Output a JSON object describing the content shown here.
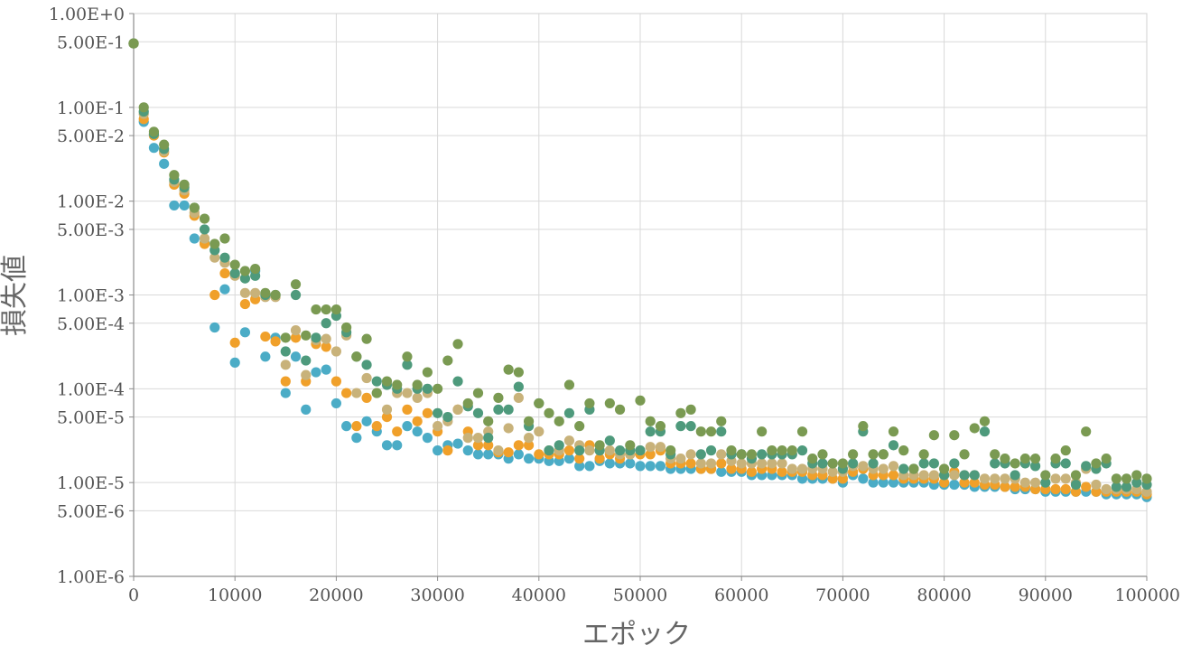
{
  "chart_data": {
    "type": "scatter",
    "xlabel": "エポック",
    "ylabel": "損失値",
    "xlim": [
      0,
      100000
    ],
    "ylim": [
      1e-06,
      1
    ],
    "yscale": "log",
    "grid": true,
    "x_ticks": [
      "0",
      "10000",
      "20000",
      "30000",
      "40000",
      "50000",
      "60000",
      "70000",
      "80000",
      "90000",
      "100000"
    ],
    "y_ticks": [
      "1.00E+0",
      "5.00E-1",
      "1.00E-1",
      "5.00E-2",
      "1.00E-2",
      "5.00E-3",
      "1.00E-3",
      "5.00E-4",
      "1.00E-4",
      "5.00E-5",
      "1.00E-5",
      "5.00E-6",
      "1.00E-6"
    ],
    "x": [
      0,
      1000,
      2000,
      3000,
      4000,
      5000,
      6000,
      7000,
      8000,
      9000,
      10000,
      11000,
      12000,
      13000,
      14000,
      15000,
      16000,
      17000,
      18000,
      19000,
      20000,
      21000,
      22000,
      23000,
      24000,
      25000,
      26000,
      27000,
      28000,
      29000,
      30000,
      31000,
      32000,
      33000,
      34000,
      35000,
      36000,
      37000,
      38000,
      39000,
      40000,
      41000,
      42000,
      43000,
      44000,
      45000,
      46000,
      47000,
      48000,
      49000,
      50000,
      51000,
      52000,
      53000,
      54000,
      55000,
      56000,
      57000,
      58000,
      59000,
      60000,
      61000,
      62000,
      63000,
      64000,
      65000,
      66000,
      67000,
      68000,
      69000,
      70000,
      71000,
      72000,
      73000,
      74000,
      75000,
      76000,
      77000,
      78000,
      79000,
      80000,
      81000,
      82000,
      83000,
      84000,
      85000,
      86000,
      87000,
      88000,
      89000,
      90000,
      91000,
      92000,
      93000,
      94000,
      95000,
      96000,
      97000,
      98000,
      99000,
      100000
    ],
    "series": [
      {
        "color": "#4bacc6",
        "values": [
          0.48,
          0.07,
          0.037,
          0.025,
          0.009,
          0.009,
          0.004,
          0.0036,
          0.00045,
          0.00115,
          0.00019,
          0.0004,
          0.0018,
          0.00022,
          0.00035,
          9e-05,
          0.00022,
          6e-05,
          0.00015,
          0.00016,
          7e-05,
          4e-05,
          3e-05,
          4.5e-05,
          3.5e-05,
          2.5e-05,
          2.5e-05,
          4e-05,
          3.5e-05,
          3e-05,
          2.2e-05,
          2.5e-05,
          2.6e-05,
          2.2e-05,
          2e-05,
          2e-05,
          2e-05,
          1.8e-05,
          2e-05,
          1.8e-05,
          1.8e-05,
          1.7e-05,
          1.7e-05,
          1.8e-05,
          1.5e-05,
          1.5e-05,
          1.7e-05,
          1.6e-05,
          1.6e-05,
          1.6e-05,
          1.5e-05,
          1.5e-05,
          1.5e-05,
          1.4e-05,
          1.4e-05,
          1.4e-05,
          1.4e-05,
          1.4e-05,
          1.3e-05,
          1.3e-05,
          1.3e-05,
          1.2e-05,
          1.2e-05,
          1.2e-05,
          1.2e-05,
          1.2e-05,
          1.1e-05,
          1.1e-05,
          1.1e-05,
          1.1e-05,
          1e-05,
          1.2e-05,
          1.1e-05,
          1e-05,
          1e-05,
          1e-05,
          1e-05,
          1e-05,
          1e-05,
          9.5e-06,
          9.5e-06,
          9.5e-06,
          9.5e-06,
          9e-06,
          9e-06,
          9e-06,
          9e-06,
          8.5e-06,
          8.5e-06,
          8.5e-06,
          8e-06,
          8e-06,
          8e-06,
          8e-06,
          8e-06,
          8e-06,
          7.5e-06,
          7.5e-06,
          7.5e-06,
          7.5e-06,
          7e-06
        ]
      },
      {
        "color": "#f0a02a",
        "values": [
          0.48,
          0.075,
          0.05,
          0.033,
          0.015,
          0.012,
          0.007,
          0.0035,
          0.001,
          0.0017,
          0.00031,
          0.0008,
          0.0009,
          0.00036,
          0.00032,
          0.00012,
          0.00035,
          0.00012,
          0.0003,
          0.00028,
          0.00012,
          9e-05,
          4e-05,
          8e-05,
          4e-05,
          5e-05,
          3.5e-05,
          6e-05,
          4.5e-05,
          5.5e-05,
          3.5e-05,
          2.2e-05,
          6e-05,
          3.5e-05,
          2.5e-05,
          2.5e-05,
          2.1e-05,
          2.1e-05,
          2.5e-05,
          2.5e-05,
          2e-05,
          2e-05,
          2e-05,
          2.2e-05,
          1.8e-05,
          2.5e-05,
          1.8e-05,
          2e-05,
          1.8e-05,
          2e-05,
          2e-05,
          2e-05,
          2.2e-05,
          1.6e-05,
          1.6e-05,
          1.6e-05,
          1.4e-05,
          1.4e-05,
          1.6e-05,
          1.4e-05,
          1.4e-05,
          1.3e-05,
          1.4e-05,
          1.4e-05,
          1.3e-05,
          1.3e-05,
          1.3e-05,
          1.2e-05,
          1.2e-05,
          1.1e-05,
          1.1e-05,
          1.3e-05,
          1.4e-05,
          1.2e-05,
          1.2e-05,
          1.2e-05,
          1.1e-05,
          1.1e-05,
          1.1e-05,
          1.1e-05,
          1e-05,
          1.3e-05,
          1e-05,
          1e-05,
          9.5e-06,
          9.5e-06,
          9e-06,
          9e-06,
          9e-06,
          8.5e-06,
          8.5e-06,
          8.5e-06,
          8.5e-06,
          8e-06,
          9e-06,
          8e-06,
          8e-06,
          8e-06,
          8e-06,
          8e-06,
          7.5e-06
        ]
      },
      {
        "color": "#c8b27a",
        "values": [
          0.48,
          0.085,
          0.052,
          0.034,
          0.016,
          0.013,
          0.0075,
          0.004,
          0.0025,
          0.0022,
          0.0016,
          0.00105,
          0.00105,
          0.00095,
          0.00095,
          0.00018,
          0.00042,
          0.00014,
          0.00033,
          0.00034,
          0.00025,
          0.00037,
          9e-05,
          0.00013,
          9e-05,
          6e-05,
          9e-05,
          9e-05,
          8e-05,
          9e-05,
          4e-05,
          4.5e-05,
          6e-05,
          3e-05,
          3e-05,
          3.5e-05,
          2.2e-05,
          3.8e-05,
          8e-05,
          3e-05,
          3.5e-05,
          2.2e-05,
          2.2e-05,
          2.8e-05,
          2.5e-05,
          2.2e-05,
          2.2e-05,
          2.2e-05,
          2e-05,
          2e-05,
          2.2e-05,
          2.4e-05,
          2.4e-05,
          1.8e-05,
          1.8e-05,
          2e-05,
          1.6e-05,
          1.6e-05,
          2e-05,
          1.7e-05,
          1.6e-05,
          1.6e-05,
          1.6e-05,
          1.6e-05,
          1.6e-05,
          1.4e-05,
          1.4e-05,
          1.4e-05,
          1.4e-05,
          1.3e-05,
          1.3e-05,
          1.5e-05,
          1.5e-05,
          1.4e-05,
          1.4e-05,
          1.5e-05,
          1.2e-05,
          1.2e-05,
          1.2e-05,
          1.2e-05,
          1.2e-05,
          1.2e-05,
          1.2e-05,
          1.2e-05,
          1.1e-05,
          1.1e-05,
          1.1e-05,
          1.1e-05,
          1e-05,
          1e-05,
          1e-05,
          1.1e-05,
          1.1e-05,
          1e-05,
          1.4e-05,
          9.5e-06,
          8.5e-06,
          8.5e-06,
          8.5e-06,
          8.5e-06,
          8e-06
        ]
      },
      {
        "color": "#4e9a7c",
        "values": [
          0.48,
          0.09,
          0.052,
          0.036,
          0.017,
          0.014,
          0.0085,
          0.005,
          0.003,
          0.0025,
          0.0017,
          0.0015,
          0.0016,
          0.001,
          0.001,
          0.00025,
          0.001,
          0.0002,
          0.00035,
          0.0005,
          0.0006,
          0.0004,
          0.00022,
          0.00018,
          0.00012,
          0.00011,
          0.0001,
          0.00018,
          0.0001,
          0.0001,
          5.5e-05,
          5e-05,
          0.00012,
          6.5e-05,
          5.5e-05,
          3e-05,
          6e-05,
          6e-05,
          0.000105,
          4e-05,
          7e-05,
          2.2e-05,
          2.5e-05,
          5.5e-05,
          2.2e-05,
          6e-05,
          2.2e-05,
          2.8e-05,
          2.2e-05,
          2.2e-05,
          2.2e-05,
          3.5e-05,
          3.5e-05,
          2e-05,
          4e-05,
          4e-05,
          2e-05,
          2.2e-05,
          3.5e-05,
          2e-05,
          2e-05,
          1.8e-05,
          2e-05,
          2e-05,
          2e-05,
          2e-05,
          2.2e-05,
          1.6e-05,
          1.6e-05,
          1.6e-05,
          1.4e-05,
          1.6e-05,
          3.5e-05,
          1.6e-05,
          2e-05,
          2.5e-05,
          1.4e-05,
          1.4e-05,
          1.6e-05,
          1.6e-05,
          1.2e-05,
          1.6e-05,
          1.2e-05,
          1.2e-05,
          3.5e-05,
          1.6e-05,
          1.6e-05,
          1.2e-05,
          1.6e-05,
          1.5e-05,
          1e-05,
          1.6e-05,
          1.6e-05,
          9.5e-06,
          1.5e-05,
          1.4e-05,
          1.6e-05,
          9e-06,
          9e-06,
          1e-05,
          9.5e-06
        ]
      },
      {
        "color": "#7a9a52",
        "values": [
          0.48,
          0.1,
          0.055,
          0.04,
          0.019,
          0.015,
          0.0085,
          0.0065,
          0.0035,
          0.004,
          0.0021,
          0.0018,
          0.0019,
          0.00105,
          0.001,
          0.00035,
          0.0013,
          0.00037,
          0.0007,
          0.0007,
          0.0007,
          0.00045,
          0.00022,
          0.00034,
          9e-05,
          0.00012,
          0.00011,
          0.00022,
          0.00011,
          0.00015,
          0.0001,
          0.0002,
          0.0003,
          7e-05,
          9e-05,
          4.5e-05,
          8e-05,
          0.00016,
          0.00015,
          4.5e-05,
          7e-05,
          5.5e-05,
          4.5e-05,
          0.00011,
          4e-05,
          7e-05,
          2.5e-05,
          7e-05,
          6e-05,
          2.5e-05,
          7.5e-05,
          4.5e-05,
          4e-05,
          2.2e-05,
          5.5e-05,
          6e-05,
          3.5e-05,
          3.5e-05,
          4.5e-05,
          2.2e-05,
          2e-05,
          2e-05,
          3.5e-05,
          2.2e-05,
          2.2e-05,
          2.2e-05,
          3.5e-05,
          1.8e-05,
          2e-05,
          1.6e-05,
          1.6e-05,
          2e-05,
          4e-05,
          2e-05,
          2e-05,
          3.5e-05,
          2.2e-05,
          1.4e-05,
          2e-05,
          3.2e-05,
          1.4e-05,
          3.2e-05,
          2e-05,
          3.8e-05,
          4.5e-05,
          2e-05,
          1.8e-05,
          1.6e-05,
          1.8e-05,
          1.8e-05,
          1.2e-05,
          1.8e-05,
          2.2e-05,
          1.2e-05,
          3.5e-05,
          1.6e-05,
          1.8e-05,
          1.1e-05,
          1.1e-05,
          1.2e-05,
          1.1e-05
        ]
      }
    ]
  }
}
